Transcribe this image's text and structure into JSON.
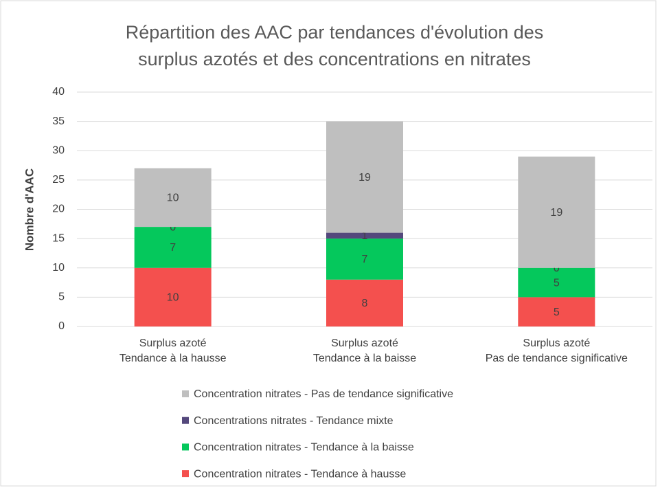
{
  "chart_data": {
    "type": "stacked-bar",
    "title": [
      "Répartition des AAC par tendances d'évolution des",
      "surplus azotés et des concentrations en nitrates"
    ],
    "y_label": "Nombre d'AAC",
    "categories": [
      [
        "Surplus azoté",
        "Tendance à la hausse"
      ],
      [
        "Surplus azoté",
        "Tendance à la baisse"
      ],
      [
        "Surplus azoté",
        "Pas de tendance significative"
      ]
    ],
    "series": [
      {
        "name": "Concentration nitrates - Tendance à hausse",
        "color": "#f4504e",
        "values": [
          10,
          8,
          5
        ]
      },
      {
        "name": "Concentration nitrates - Tendance à la baisse",
        "color": "#05c85c",
        "values": [
          7,
          7,
          5
        ]
      },
      {
        "name": "Concentrations nitrates - Tendance mixte",
        "color": "#54487c",
        "values": [
          0,
          1,
          0
        ]
      },
      {
        "name": "Concentration nitrates - Pas de tendance significative",
        "color": "#bfbfbf",
        "values": [
          10,
          19,
          19
        ]
      }
    ],
    "ylim": [
      0,
      40
    ],
    "yticks": [
      0,
      5,
      10,
      15,
      20,
      25,
      30,
      35,
      40
    ],
    "grid": true,
    "legend": "bottom"
  }
}
